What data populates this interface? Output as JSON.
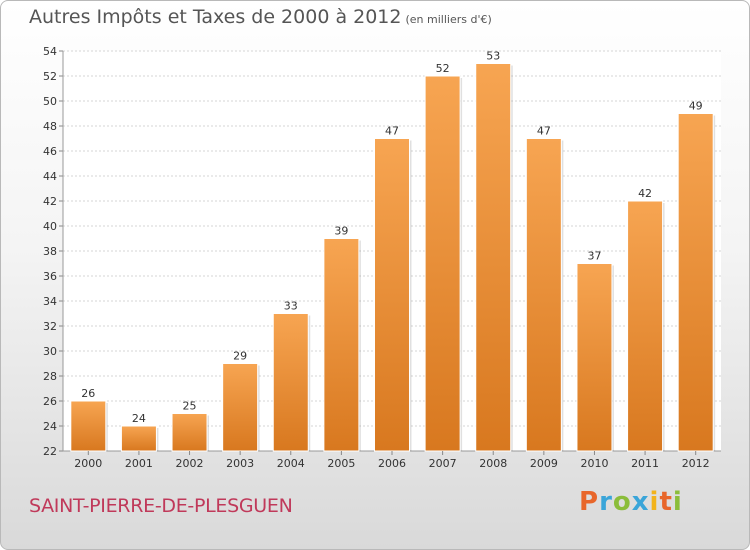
{
  "chart_data": {
    "type": "bar",
    "title": "Autres Impôts et Taxes de 2000 à 2012",
    "unit": "(en milliers d'€)",
    "categories": [
      "2000",
      "2001",
      "2002",
      "2003",
      "2004",
      "2005",
      "2006",
      "2007",
      "2008",
      "2009",
      "2010",
      "2011",
      "2012"
    ],
    "values": [
      26,
      24,
      25,
      29,
      33,
      39,
      47,
      52,
      53,
      47,
      37,
      42,
      49
    ],
    "ylim": [
      22,
      54
    ],
    "yticks": [
      22,
      24,
      26,
      28,
      30,
      32,
      34,
      36,
      38,
      40,
      42,
      44,
      46,
      48,
      50,
      52,
      54
    ],
    "grid": true,
    "bar_color_top": "#f7a552",
    "bar_color_bottom": "#d8781f"
  },
  "commune": "SAINT-PIERRE-DE-PLESGUEN",
  "logo": {
    "letters": [
      "P",
      "r",
      "o",
      "x",
      "i",
      "t",
      "i"
    ],
    "colors": [
      "#e8662a",
      "#3aa5d9",
      "#8bbd3a",
      "#3aa5d9",
      "#f2b31b",
      "#e8662a",
      "#8bbd3a"
    ]
  }
}
